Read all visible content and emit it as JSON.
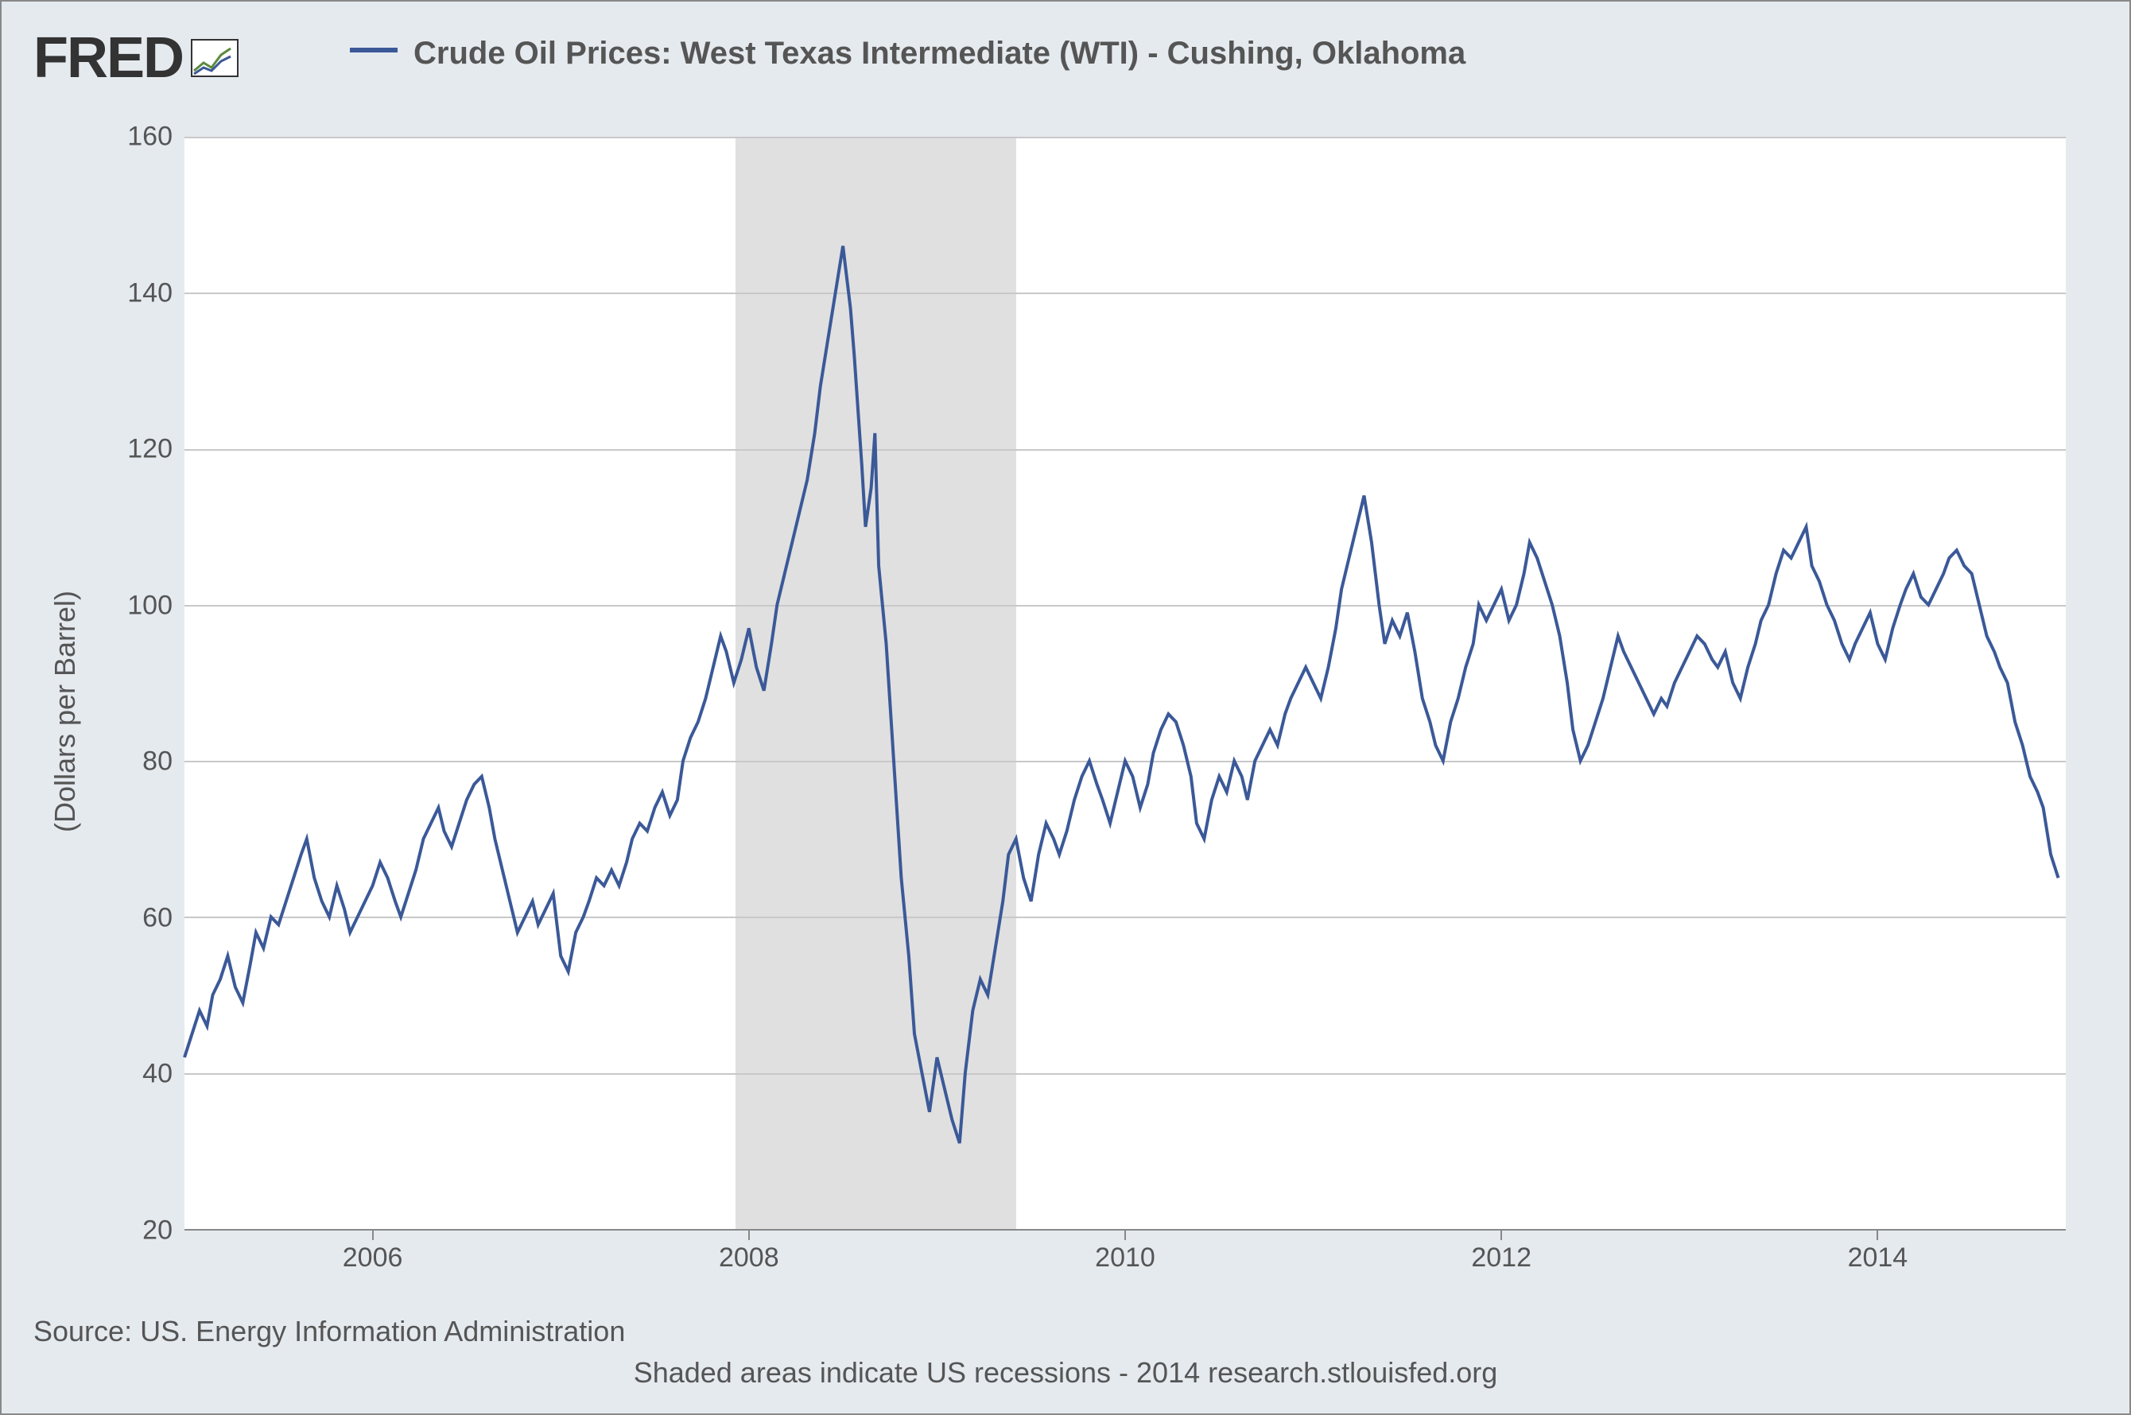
{
  "logo_text": "FRED",
  "chart": {
    "type": "line",
    "legend_label": "Crude Oil Prices: West Texas Intermediate (WTI) - Cushing, Oklahoma",
    "y_axis": {
      "title": "(Dollars per Barrel)",
      "min": 20,
      "max": 160,
      "ticks": [
        20,
        40,
        60,
        80,
        100,
        120,
        140,
        160
      ]
    },
    "x_axis": {
      "min": 2005.0,
      "max": 2015.0,
      "ticks": [
        2006,
        2008,
        2010,
        2012,
        2014
      ]
    },
    "recession_band": {
      "start": 2007.93,
      "end": 2009.42
    },
    "line_color": "#3b5998",
    "line_width": 4,
    "grid_color": "#c8c8c8",
    "background": "#ffffff",
    "page_background": "#e5eaef",
    "series": [
      [
        2005.0,
        42
      ],
      [
        2005.04,
        45
      ],
      [
        2005.08,
        48
      ],
      [
        2005.12,
        46
      ],
      [
        2005.15,
        50
      ],
      [
        2005.19,
        52
      ],
      [
        2005.23,
        55
      ],
      [
        2005.27,
        51
      ],
      [
        2005.31,
        49
      ],
      [
        2005.35,
        54
      ],
      [
        2005.38,
        58
      ],
      [
        2005.42,
        56
      ],
      [
        2005.46,
        60
      ],
      [
        2005.5,
        59
      ],
      [
        2005.54,
        62
      ],
      [
        2005.58,
        65
      ],
      [
        2005.62,
        68
      ],
      [
        2005.65,
        70
      ],
      [
        2005.69,
        65
      ],
      [
        2005.73,
        62
      ],
      [
        2005.77,
        60
      ],
      [
        2005.81,
        64
      ],
      [
        2005.85,
        61
      ],
      [
        2005.88,
        58
      ],
      [
        2005.92,
        60
      ],
      [
        2005.96,
        62
      ],
      [
        2006.0,
        64
      ],
      [
        2006.04,
        67
      ],
      [
        2006.08,
        65
      ],
      [
        2006.12,
        62
      ],
      [
        2006.15,
        60
      ],
      [
        2006.19,
        63
      ],
      [
        2006.23,
        66
      ],
      [
        2006.27,
        70
      ],
      [
        2006.31,
        72
      ],
      [
        2006.35,
        74
      ],
      [
        2006.38,
        71
      ],
      [
        2006.42,
        69
      ],
      [
        2006.46,
        72
      ],
      [
        2006.5,
        75
      ],
      [
        2006.54,
        77
      ],
      [
        2006.58,
        78
      ],
      [
        2006.62,
        74
      ],
      [
        2006.65,
        70
      ],
      [
        2006.69,
        66
      ],
      [
        2006.73,
        62
      ],
      [
        2006.77,
        58
      ],
      [
        2006.81,
        60
      ],
      [
        2006.85,
        62
      ],
      [
        2006.88,
        59
      ],
      [
        2006.92,
        61
      ],
      [
        2006.96,
        63
      ],
      [
        2007.0,
        55
      ],
      [
        2007.04,
        53
      ],
      [
        2007.08,
        58
      ],
      [
        2007.12,
        60
      ],
      [
        2007.15,
        62
      ],
      [
        2007.19,
        65
      ],
      [
        2007.23,
        64
      ],
      [
        2007.27,
        66
      ],
      [
        2007.31,
        64
      ],
      [
        2007.35,
        67
      ],
      [
        2007.38,
        70
      ],
      [
        2007.42,
        72
      ],
      [
        2007.46,
        71
      ],
      [
        2007.5,
        74
      ],
      [
        2007.54,
        76
      ],
      [
        2007.58,
        73
      ],
      [
        2007.62,
        75
      ],
      [
        2007.65,
        80
      ],
      [
        2007.69,
        83
      ],
      [
        2007.73,
        85
      ],
      [
        2007.77,
        88
      ],
      [
        2007.81,
        92
      ],
      [
        2007.85,
        96
      ],
      [
        2007.88,
        94
      ],
      [
        2007.92,
        90
      ],
      [
        2007.96,
        93
      ],
      [
        2008.0,
        97
      ],
      [
        2008.04,
        92
      ],
      [
        2008.08,
        89
      ],
      [
        2008.12,
        95
      ],
      [
        2008.15,
        100
      ],
      [
        2008.19,
        104
      ],
      [
        2008.23,
        108
      ],
      [
        2008.27,
        112
      ],
      [
        2008.31,
        116
      ],
      [
        2008.35,
        122
      ],
      [
        2008.38,
        128
      ],
      [
        2008.42,
        134
      ],
      [
        2008.46,
        140
      ],
      [
        2008.5,
        146
      ],
      [
        2008.52,
        142
      ],
      [
        2008.54,
        138
      ],
      [
        2008.56,
        132
      ],
      [
        2008.58,
        125
      ],
      [
        2008.6,
        118
      ],
      [
        2008.62,
        110
      ],
      [
        2008.65,
        115
      ],
      [
        2008.67,
        122
      ],
      [
        2008.69,
        105
      ],
      [
        2008.73,
        95
      ],
      [
        2008.77,
        80
      ],
      [
        2008.81,
        65
      ],
      [
        2008.85,
        55
      ],
      [
        2008.88,
        45
      ],
      [
        2008.92,
        40
      ],
      [
        2008.96,
        35
      ],
      [
        2009.0,
        42
      ],
      [
        2009.04,
        38
      ],
      [
        2009.08,
        34
      ],
      [
        2009.12,
        31
      ],
      [
        2009.15,
        40
      ],
      [
        2009.19,
        48
      ],
      [
        2009.23,
        52
      ],
      [
        2009.27,
        50
      ],
      [
        2009.31,
        56
      ],
      [
        2009.35,
        62
      ],
      [
        2009.38,
        68
      ],
      [
        2009.42,
        70
      ],
      [
        2009.46,
        65
      ],
      [
        2009.5,
        62
      ],
      [
        2009.54,
        68
      ],
      [
        2009.58,
        72
      ],
      [
        2009.62,
        70
      ],
      [
        2009.65,
        68
      ],
      [
        2009.69,
        71
      ],
      [
        2009.73,
        75
      ],
      [
        2009.77,
        78
      ],
      [
        2009.81,
        80
      ],
      [
        2009.85,
        77
      ],
      [
        2009.88,
        75
      ],
      [
        2009.92,
        72
      ],
      [
        2009.96,
        76
      ],
      [
        2010.0,
        80
      ],
      [
        2010.04,
        78
      ],
      [
        2010.08,
        74
      ],
      [
        2010.12,
        77
      ],
      [
        2010.15,
        81
      ],
      [
        2010.19,
        84
      ],
      [
        2010.23,
        86
      ],
      [
        2010.27,
        85
      ],
      [
        2010.31,
        82
      ],
      [
        2010.35,
        78
      ],
      [
        2010.38,
        72
      ],
      [
        2010.42,
        70
      ],
      [
        2010.46,
        75
      ],
      [
        2010.5,
        78
      ],
      [
        2010.54,
        76
      ],
      [
        2010.58,
        80
      ],
      [
        2010.62,
        78
      ],
      [
        2010.65,
        75
      ],
      [
        2010.69,
        80
      ],
      [
        2010.73,
        82
      ],
      [
        2010.77,
        84
      ],
      [
        2010.81,
        82
      ],
      [
        2010.85,
        86
      ],
      [
        2010.88,
        88
      ],
      [
        2010.92,
        90
      ],
      [
        2010.96,
        92
      ],
      [
        2011.0,
        90
      ],
      [
        2011.04,
        88
      ],
      [
        2011.08,
        92
      ],
      [
        2011.12,
        97
      ],
      [
        2011.15,
        102
      ],
      [
        2011.19,
        106
      ],
      [
        2011.23,
        110
      ],
      [
        2011.27,
        114
      ],
      [
        2011.31,
        108
      ],
      [
        2011.35,
        100
      ],
      [
        2011.38,
        95
      ],
      [
        2011.42,
        98
      ],
      [
        2011.46,
        96
      ],
      [
        2011.5,
        99
      ],
      [
        2011.54,
        94
      ],
      [
        2011.58,
        88
      ],
      [
        2011.62,
        85
      ],
      [
        2011.65,
        82
      ],
      [
        2011.69,
        80
      ],
      [
        2011.73,
        85
      ],
      [
        2011.77,
        88
      ],
      [
        2011.81,
        92
      ],
      [
        2011.85,
        95
      ],
      [
        2011.88,
        100
      ],
      [
        2011.92,
        98
      ],
      [
        2011.96,
        100
      ],
      [
        2012.0,
        102
      ],
      [
        2012.04,
        98
      ],
      [
        2012.08,
        100
      ],
      [
        2012.12,
        104
      ],
      [
        2012.15,
        108
      ],
      [
        2012.19,
        106
      ],
      [
        2012.23,
        103
      ],
      [
        2012.27,
        100
      ],
      [
        2012.31,
        96
      ],
      [
        2012.35,
        90
      ],
      [
        2012.38,
        84
      ],
      [
        2012.42,
        80
      ],
      [
        2012.46,
        82
      ],
      [
        2012.5,
        85
      ],
      [
        2012.54,
        88
      ],
      [
        2012.58,
        92
      ],
      [
        2012.62,
        96
      ],
      [
        2012.65,
        94
      ],
      [
        2012.69,
        92
      ],
      [
        2012.73,
        90
      ],
      [
        2012.77,
        88
      ],
      [
        2012.81,
        86
      ],
      [
        2012.85,
        88
      ],
      [
        2012.88,
        87
      ],
      [
        2012.92,
        90
      ],
      [
        2012.96,
        92
      ],
      [
        2013.0,
        94
      ],
      [
        2013.04,
        96
      ],
      [
        2013.08,
        95
      ],
      [
        2013.12,
        93
      ],
      [
        2013.15,
        92
      ],
      [
        2013.19,
        94
      ],
      [
        2013.23,
        90
      ],
      [
        2013.27,
        88
      ],
      [
        2013.31,
        92
      ],
      [
        2013.35,
        95
      ],
      [
        2013.38,
        98
      ],
      [
        2013.42,
        100
      ],
      [
        2013.46,
        104
      ],
      [
        2013.5,
        107
      ],
      [
        2013.54,
        106
      ],
      [
        2013.58,
        108
      ],
      [
        2013.62,
        110
      ],
      [
        2013.65,
        105
      ],
      [
        2013.69,
        103
      ],
      [
        2013.73,
        100
      ],
      [
        2013.77,
        98
      ],
      [
        2013.81,
        95
      ],
      [
        2013.85,
        93
      ],
      [
        2013.88,
        95
      ],
      [
        2013.92,
        97
      ],
      [
        2013.96,
        99
      ],
      [
        2014.0,
        95
      ],
      [
        2014.04,
        93
      ],
      [
        2014.08,
        97
      ],
      [
        2014.12,
        100
      ],
      [
        2014.15,
        102
      ],
      [
        2014.19,
        104
      ],
      [
        2014.23,
        101
      ],
      [
        2014.27,
        100
      ],
      [
        2014.31,
        102
      ],
      [
        2014.35,
        104
      ],
      [
        2014.38,
        106
      ],
      [
        2014.42,
        107
      ],
      [
        2014.46,
        105
      ],
      [
        2014.5,
        104
      ],
      [
        2014.54,
        100
      ],
      [
        2014.58,
        96
      ],
      [
        2014.62,
        94
      ],
      [
        2014.65,
        92
      ],
      [
        2014.69,
        90
      ],
      [
        2014.73,
        85
      ],
      [
        2014.77,
        82
      ],
      [
        2014.81,
        78
      ],
      [
        2014.85,
        76
      ],
      [
        2014.88,
        74
      ],
      [
        2014.92,
        68
      ],
      [
        2014.96,
        65
      ]
    ]
  },
  "source": "Source: US. Energy Information Administration",
  "footnote": "Shaded areas indicate US recessions - 2014 research.stlouisfed.org"
}
